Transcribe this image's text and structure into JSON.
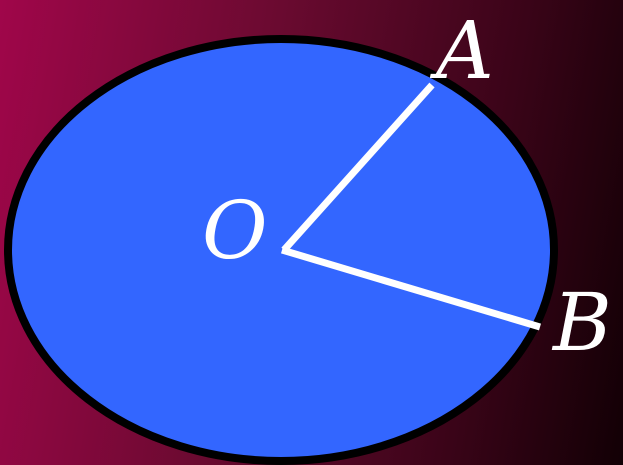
{
  "colors": {
    "background_left": "#a0064a",
    "background_right": "#120005",
    "circle_fill": "#3366ff",
    "circle_stroke": "#000000",
    "radius_lines": "#ffffff",
    "label_text": "#ffffff"
  },
  "labels": {
    "center": "O",
    "point_a": "A",
    "point_b": "B"
  }
}
